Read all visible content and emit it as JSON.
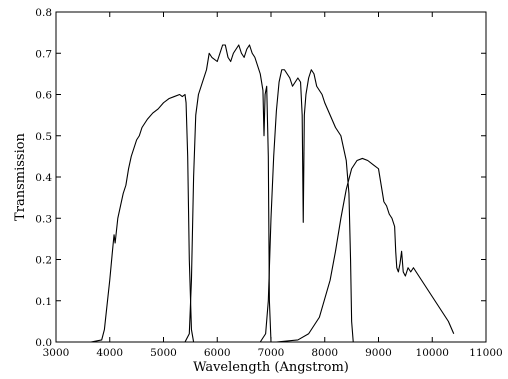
{
  "chart_data": {
    "type": "line",
    "title": "",
    "xlabel": "Wavelength (Angstrom)",
    "ylabel": "Transmission",
    "xlim": [
      3000,
      11000
    ],
    "ylim": [
      0.0,
      0.8
    ],
    "x_ticks": [
      3000,
      4000,
      5000,
      6000,
      7000,
      8000,
      9000,
      10000,
      11000
    ],
    "x_tick_labels": [
      "3000",
      "4000",
      "5000",
      "6000",
      "7000",
      "8000",
      "9000",
      "10000",
      "11000"
    ],
    "y_ticks": [
      0.0,
      0.1,
      0.2,
      0.3,
      0.4,
      0.5,
      0.6,
      0.7,
      0.8
    ],
    "y_tick_labels": [
      "0.0",
      "0.1",
      "0.2",
      "0.3",
      "0.4",
      "0.5",
      "0.6",
      "0.7",
      "0.8"
    ],
    "grid": false,
    "legend": "none",
    "line_color": "#000000",
    "series": [
      {
        "points": [
          [
            3650,
            0
          ],
          [
            3850,
            0.005
          ],
          [
            3900,
            0.03
          ],
          [
            3950,
            0.09
          ],
          [
            4000,
            0.15
          ],
          [
            4050,
            0.22
          ],
          [
            4080,
            0.26
          ],
          [
            4100,
            0.24
          ],
          [
            4150,
            0.3
          ],
          [
            4200,
            0.33
          ],
          [
            4250,
            0.36
          ],
          [
            4300,
            0.38
          ],
          [
            4350,
            0.42
          ],
          [
            4400,
            0.45
          ],
          [
            4450,
            0.47
          ],
          [
            4500,
            0.49
          ],
          [
            4550,
            0.5
          ],
          [
            4600,
            0.52
          ],
          [
            4700,
            0.54
          ],
          [
            4800,
            0.555
          ],
          [
            4900,
            0.565
          ],
          [
            5000,
            0.58
          ],
          [
            5100,
            0.59
          ],
          [
            5200,
            0.595
          ],
          [
            5300,
            0.6
          ],
          [
            5350,
            0.595
          ],
          [
            5400,
            0.6
          ],
          [
            5420,
            0.58
          ],
          [
            5450,
            0.45
          ],
          [
            5480,
            0.2
          ],
          [
            5520,
            0.03
          ],
          [
            5560,
            0.0
          ],
          [
            5700,
            0.0
          ]
        ]
      },
      {
        "points": [
          [
            5400,
            0
          ],
          [
            5480,
            0.02
          ],
          [
            5520,
            0.15
          ],
          [
            5560,
            0.4
          ],
          [
            5600,
            0.55
          ],
          [
            5650,
            0.6
          ],
          [
            5700,
            0.62
          ],
          [
            5800,
            0.66
          ],
          [
            5850,
            0.7
          ],
          [
            5900,
            0.69
          ],
          [
            6000,
            0.68
          ],
          [
            6050,
            0.7
          ],
          [
            6100,
            0.72
          ],
          [
            6150,
            0.72
          ],
          [
            6200,
            0.69
          ],
          [
            6250,
            0.68
          ],
          [
            6300,
            0.7
          ],
          [
            6350,
            0.71
          ],
          [
            6400,
            0.72
          ],
          [
            6450,
            0.7
          ],
          [
            6500,
            0.69
          ],
          [
            6550,
            0.71
          ],
          [
            6600,
            0.72
          ],
          [
            6650,
            0.7
          ],
          [
            6700,
            0.69
          ],
          [
            6750,
            0.67
          ],
          [
            6800,
            0.65
          ],
          [
            6850,
            0.61
          ],
          [
            6870,
            0.5
          ],
          [
            6890,
            0.6
          ],
          [
            6920,
            0.62
          ],
          [
            6950,
            0.45
          ],
          [
            6970,
            0.1
          ],
          [
            7000,
            0.0
          ],
          [
            7050,
            0.0
          ]
        ]
      },
      {
        "points": [
          [
            6800,
            0
          ],
          [
            6900,
            0.02
          ],
          [
            6950,
            0.1
          ],
          [
            7000,
            0.3
          ],
          [
            7050,
            0.45
          ],
          [
            7100,
            0.56
          ],
          [
            7150,
            0.63
          ],
          [
            7200,
            0.66
          ],
          [
            7250,
            0.66
          ],
          [
            7300,
            0.65
          ],
          [
            7350,
            0.64
          ],
          [
            7400,
            0.62
          ],
          [
            7450,
            0.63
          ],
          [
            7500,
            0.64
          ],
          [
            7550,
            0.63
          ],
          [
            7580,
            0.55
          ],
          [
            7600,
            0.29
          ],
          [
            7620,
            0.55
          ],
          [
            7650,
            0.6
          ],
          [
            7700,
            0.64
          ],
          [
            7750,
            0.66
          ],
          [
            7800,
            0.65
          ],
          [
            7850,
            0.62
          ],
          [
            7900,
            0.61
          ],
          [
            7950,
            0.6
          ],
          [
            8000,
            0.58
          ],
          [
            8100,
            0.55
          ],
          [
            8200,
            0.52
          ],
          [
            8300,
            0.5
          ],
          [
            8350,
            0.47
          ],
          [
            8400,
            0.44
          ],
          [
            8450,
            0.36
          ],
          [
            8480,
            0.2
          ],
          [
            8500,
            0.05
          ],
          [
            8530,
            0.0
          ],
          [
            8600,
            0.0
          ]
        ]
      },
      {
        "points": [
          [
            7100,
            0
          ],
          [
            7500,
            0.005
          ],
          [
            7700,
            0.02
          ],
          [
            7900,
            0.06
          ],
          [
            8100,
            0.15
          ],
          [
            8200,
            0.22
          ],
          [
            8300,
            0.3
          ],
          [
            8400,
            0.37
          ],
          [
            8500,
            0.42
          ],
          [
            8600,
            0.44
          ],
          [
            8700,
            0.445
          ],
          [
            8800,
            0.44
          ],
          [
            8900,
            0.43
          ],
          [
            9000,
            0.42
          ],
          [
            9050,
            0.38
          ],
          [
            9100,
            0.34
          ],
          [
            9150,
            0.33
          ],
          [
            9200,
            0.31
          ],
          [
            9250,
            0.3
          ],
          [
            9300,
            0.28
          ],
          [
            9320,
            0.22
          ],
          [
            9340,
            0.18
          ],
          [
            9370,
            0.17
          ],
          [
            9400,
            0.19
          ],
          [
            9430,
            0.22
          ],
          [
            9460,
            0.17
          ],
          [
            9500,
            0.16
          ],
          [
            9550,
            0.18
          ],
          [
            9600,
            0.17
          ],
          [
            9650,
            0.18
          ],
          [
            9700,
            0.17
          ],
          [
            9750,
            0.16
          ],
          [
            9800,
            0.15
          ],
          [
            9900,
            0.13
          ],
          [
            10000,
            0.11
          ],
          [
            10100,
            0.09
          ],
          [
            10200,
            0.07
          ],
          [
            10300,
            0.05
          ],
          [
            10400,
            0.02
          ]
        ]
      }
    ]
  }
}
